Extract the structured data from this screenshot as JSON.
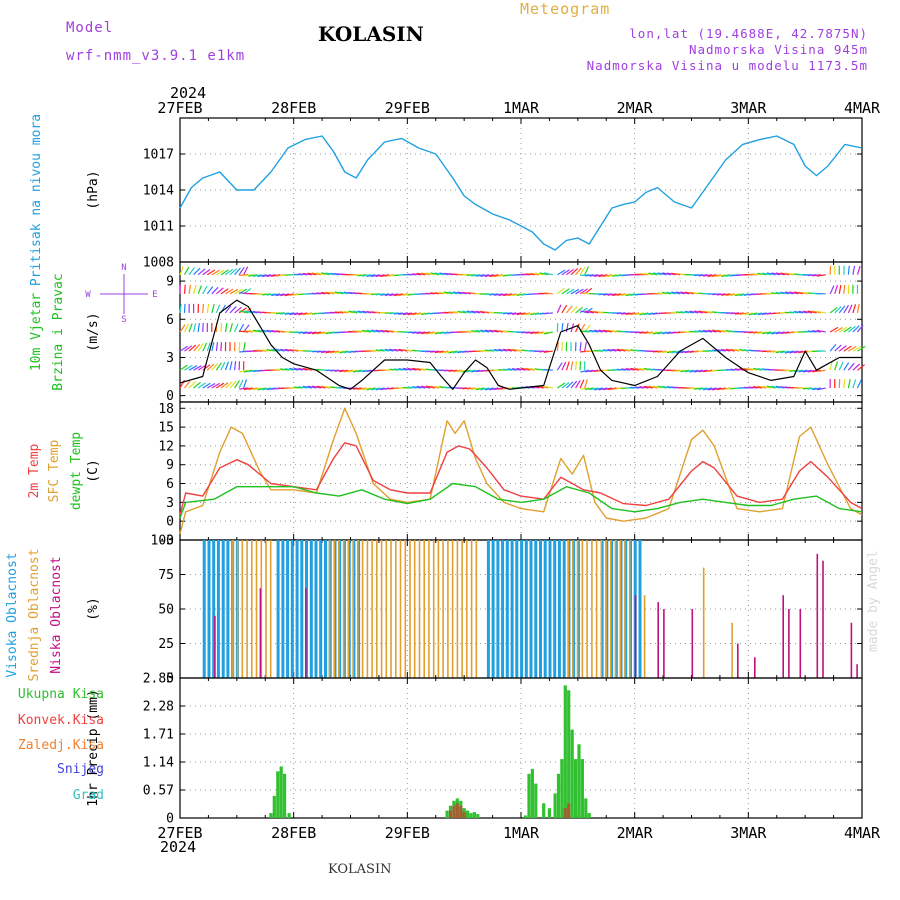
{
  "header": {
    "model_label": "Model",
    "model_name": "wrf-nmm_v3.9.1 e1km",
    "title": "KOLASIN",
    "subtitle": "Meteogram",
    "lonlat": "lon,lat (19.4688E, 42.7875N)",
    "altitude": "Nadmorska Visina 945m",
    "model_altitude": "Nadmorska Visina u modelu 1173.5m",
    "year": "2024",
    "footer": "KOLASIN",
    "credit": "made by Angel"
  },
  "colors": {
    "pressure": "#20a0e0",
    "temp2m": "#f04040",
    "sfc_temp": "#e0a030",
    "dewpoint": "#20c020",
    "high_cloud": "#20a0e0",
    "mid_cloud": "#e0a030",
    "low_cloud": "#c01080",
    "total_rain": "#30c030",
    "conv_rain": "#f04040",
    "frozen_rain": "#f08030",
    "snow": "#4040e0",
    "hail": "#30c0c0",
    "wind_speed": "#000000",
    "gust": "#f04040"
  },
  "chart_data": [
    {
      "id": "pressure",
      "type": "line",
      "ylabel": "(hPa)",
      "side_labels": [
        "Pritisak na nivou mora"
      ],
      "ylim": [
        1008,
        1020
      ],
      "yticks": [
        "1008",
        "1011",
        "1014",
        "1017"
      ],
      "xlim_days": [
        0,
        6
      ],
      "x_tick_labels": [
        "27FEB",
        "28FEB",
        "29FEB",
        "1MAR",
        "2MAR",
        "3MAR",
        "4MAR"
      ],
      "grid": true,
      "series": [
        {
          "x": [
            0,
            0.1,
            0.2,
            0.35,
            0.5,
            0.65,
            0.8,
            0.95,
            1.1,
            1.25,
            1.35,
            1.45,
            1.55,
            1.65,
            1.8,
            1.95,
            2.1,
            2.25,
            2.4,
            2.5,
            2.6,
            2.75,
            2.9,
            3.0,
            3.1,
            3.2,
            3.3,
            3.4,
            3.5,
            3.6,
            3.7,
            3.8,
            3.9,
            4.0,
            4.1,
            4.2,
            4.35,
            4.5,
            4.65,
            4.8,
            4.95,
            5.1,
            5.25,
            5.4,
            5.5,
            5.6,
            5.7,
            5.85,
            6.0
          ],
          "values": [
            1012.5,
            1014.2,
            1015.0,
            1015.5,
            1014.0,
            1014.0,
            1015.5,
            1017.5,
            1018.2,
            1018.5,
            1017.2,
            1015.5,
            1015.0,
            1016.5,
            1018.0,
            1018.3,
            1017.5,
            1017.0,
            1015.0,
            1013.5,
            1012.8,
            1012.0,
            1011.5,
            1011.0,
            1010.5,
            1009.5,
            1009.0,
            1009.8,
            1010.0,
            1009.5,
            1011.0,
            1012.5,
            1012.8,
            1013.0,
            1013.8,
            1014.2,
            1013.0,
            1012.5,
            1014.5,
            1016.5,
            1017.8,
            1018.2,
            1018.5,
            1017.8,
            1016.0,
            1015.2,
            1016.0,
            1017.8,
            1017.5
          ]
        }
      ]
    },
    {
      "id": "wind",
      "type": "line",
      "ylabel": "(m/s)",
      "side_labels": [
        "10m Vjetar",
        "Brzina i Pravac"
      ],
      "compass_labels": [
        "W",
        "E",
        "N",
        "S"
      ],
      "ylim": [
        -0.5,
        10.5
      ],
      "yticks": [
        "0",
        "3",
        "6",
        "9"
      ],
      "xlim_days": [
        0,
        6
      ],
      "x_tick_labels": [
        "27FEB",
        "28FEB",
        "29FEB",
        "1MAR",
        "2MAR",
        "3MAR",
        "4MAR"
      ],
      "grid": true,
      "series": [
        {
          "name": "speed",
          "x": [
            0,
            0.2,
            0.35,
            0.5,
            0.6,
            0.7,
            0.8,
            0.9,
            1.0,
            1.2,
            1.4,
            1.5,
            1.6,
            1.8,
            2.0,
            2.2,
            2.3,
            2.4,
            2.5,
            2.6,
            2.7,
            2.8,
            2.9,
            3.0,
            3.2,
            3.35,
            3.5,
            3.6,
            3.7,
            3.8,
            3.9,
            4.0,
            4.2,
            4.4,
            4.6,
            4.8,
            5.0,
            5.2,
            5.4,
            5.5,
            5.6,
            5.7,
            5.8,
            6.0
          ],
          "values": [
            1.0,
            1.5,
            6.5,
            7.5,
            7.0,
            5.5,
            4.0,
            3.0,
            2.5,
            2.0,
            0.8,
            0.5,
            1.2,
            2.8,
            2.8,
            2.6,
            1.5,
            0.5,
            1.8,
            2.8,
            2.2,
            0.8,
            0.5,
            0.6,
            0.8,
            5.0,
            5.5,
            4.0,
            2.0,
            1.2,
            1.0,
            0.8,
            1.5,
            3.5,
            4.5,
            3.0,
            1.8,
            1.2,
            1.5,
            3.5,
            2.0,
            2.5,
            3.0,
            3.0
          ]
        }
      ],
      "barbs_note": ""
    },
    {
      "id": "temperature",
      "type": "line",
      "ylabel": "(C)",
      "side_labels": [
        "2m Temp",
        "SFC Temp",
        "dewpt Temp"
      ],
      "ylim": [
        -3,
        19
      ],
      "yticks": [
        "-3",
        "0",
        "3",
        "6",
        "9",
        "12",
        "15",
        "18"
      ],
      "xlim_days": [
        0,
        6
      ],
      "x_tick_labels": [
        "27FEB",
        "28FEB",
        "29FEB",
        "1MAR",
        "2MAR",
        "3MAR",
        "4MAR"
      ],
      "grid": true,
      "series": [
        {
          "name": "2m Temp",
          "x": [
            0,
            0.05,
            0.2,
            0.35,
            0.5,
            0.6,
            0.8,
            1.0,
            1.2,
            1.35,
            1.45,
            1.55,
            1.7,
            1.85,
            2.0,
            2.2,
            2.35,
            2.45,
            2.55,
            2.7,
            2.85,
            3.0,
            3.2,
            3.35,
            3.45,
            3.55,
            3.7,
            3.9,
            4.1,
            4.3,
            4.5,
            4.6,
            4.7,
            4.9,
            5.1,
            5.3,
            5.45,
            5.55,
            5.7,
            5.9,
            6.0
          ],
          "values": [
            1.0,
            4.5,
            4.0,
            8.5,
            9.8,
            9.0,
            6.0,
            5.5,
            5.0,
            10.0,
            12.5,
            12.0,
            6.5,
            5.0,
            4.5,
            4.5,
            11.0,
            12.0,
            11.5,
            8.5,
            5.0,
            4.0,
            3.5,
            7.0,
            6.0,
            5.0,
            4.5,
            2.8,
            2.5,
            3.5,
            8.0,
            9.5,
            8.5,
            4.0,
            3.0,
            3.5,
            8.0,
            9.5,
            7.0,
            3.0,
            2.0
          ]
        },
        {
          "name": "SFC Temp",
          "x": [
            0,
            0.05,
            0.2,
            0.35,
            0.45,
            0.55,
            0.7,
            0.8,
            1.0,
            1.2,
            1.35,
            1.45,
            1.55,
            1.7,
            1.85,
            2.0,
            2.2,
            2.35,
            2.42,
            2.5,
            2.6,
            2.7,
            2.85,
            3.0,
            3.2,
            3.35,
            3.45,
            3.55,
            3.65,
            3.75,
            3.9,
            4.1,
            4.3,
            4.5,
            4.6,
            4.7,
            4.9,
            5.1,
            5.3,
            5.45,
            5.55,
            5.7,
            5.9,
            6.0
          ],
          "values": [
            -2.0,
            1.5,
            2.5,
            11.0,
            15.0,
            14.0,
            8.0,
            5.0,
            5.0,
            4.5,
            13.0,
            18.0,
            14.0,
            6.0,
            3.5,
            3.0,
            3.5,
            16.0,
            14.0,
            16.0,
            10.0,
            6.0,
            3.0,
            2.0,
            1.5,
            10.0,
            7.5,
            10.5,
            3.0,
            0.5,
            0.0,
            0.5,
            2.0,
            13.0,
            14.5,
            12.0,
            2.0,
            1.5,
            2.0,
            13.5,
            15.0,
            9.0,
            2.0,
            1.0
          ]
        },
        {
          "name": "dewpt Temp",
          "x": [
            0,
            0.05,
            0.3,
            0.5,
            0.7,
            1.0,
            1.2,
            1.4,
            1.6,
            1.8,
            2.0,
            2.2,
            2.4,
            2.6,
            2.8,
            3.0,
            3.2,
            3.4,
            3.6,
            3.8,
            4.0,
            4.2,
            4.4,
            4.6,
            4.8,
            5.0,
            5.2,
            5.4,
            5.6,
            5.8,
            6.0
          ],
          "values": [
            0.5,
            3.0,
            3.5,
            5.5,
            5.5,
            5.5,
            4.5,
            4.0,
            5.0,
            3.5,
            2.8,
            3.5,
            6.0,
            5.5,
            3.5,
            3.0,
            3.5,
            5.5,
            4.5,
            2.0,
            1.5,
            2.0,
            3.0,
            3.5,
            3.0,
            2.5,
            2.5,
            3.5,
            4.0,
            2.0,
            1.5
          ]
        }
      ]
    },
    {
      "id": "cloud",
      "type": "bar",
      "ylabel": "(%)",
      "side_labels": [
        "Visoka Oblacnost",
        "Srednja Oblacnost",
        "Niska Oblacnost"
      ],
      "ylim": [
        0,
        100
      ],
      "yticks": [
        "0",
        "25",
        "50",
        "75",
        "100"
      ],
      "xlim_days": [
        0,
        6
      ],
      "x_tick_labels": [
        "27FEB",
        "28FEB",
        "29FEB",
        "1MAR",
        "2MAR",
        "3MAR",
        "4MAR"
      ],
      "grid": true,
      "series": [
        {
          "name": "Visoka Oblacnost",
          "segments": [
            [
              0.2,
              0.5,
              100
            ],
            [
              0.85,
              1.6,
              100
            ],
            [
              2.7,
              3.5,
              100
            ],
            [
              3.7,
              4.05,
              100
            ]
          ]
        },
        {
          "name": "Srednja Oblacnost",
          "segments": [
            [
              0.45,
              0.8,
              100
            ],
            [
              1.3,
              2.6,
              100
            ],
            [
              3.4,
              3.95,
              100
            ]
          ],
          "points": [
            [
              4.08,
              60
            ],
            [
              4.6,
              80
            ],
            [
              4.85,
              40
            ]
          ]
        },
        {
          "name": "Niska Oblacnost",
          "points": [
            [
              0.3,
              45
            ],
            [
              0.7,
              65
            ],
            [
              1.1,
              65
            ],
            [
              4.0,
              60
            ],
            [
              4.2,
              55
            ],
            [
              4.25,
              50
            ],
            [
              4.5,
              50
            ],
            [
              4.9,
              25
            ],
            [
              5.05,
              15
            ],
            [
              5.3,
              60
            ],
            [
              5.35,
              50
            ],
            [
              5.45,
              50
            ],
            [
              5.6,
              90
            ],
            [
              5.65,
              85
            ],
            [
              5.9,
              40
            ],
            [
              5.95,
              10
            ]
          ]
        }
      ]
    },
    {
      "id": "precip",
      "type": "bar",
      "ylabel": "1hr Precip (mm)",
      "side_labels": [
        "Ukupna Kisa",
        "Konvek.Kisa",
        "Zaledj.Kisa",
        "Snijeg",
        "Grad"
      ],
      "ylim": [
        0,
        2.85
      ],
      "yticks": [
        "0",
        "0.57",
        "1.14",
        "1.71",
        "2.28",
        "2.85"
      ],
      "xlim_days": [
        0,
        6
      ],
      "x_tick_labels": [
        "27FEB",
        "28FEB",
        "29FEB",
        "1MAR",
        "2MAR",
        "3MAR",
        "4MAR"
      ],
      "grid": true,
      "series": [
        {
          "name": "Ukupna Kisa",
          "x": [
            0.8,
            0.83,
            0.86,
            0.89,
            0.92,
            0.96,
            2.35,
            2.38,
            2.41,
            2.44,
            2.47,
            2.5,
            2.53,
            2.56,
            2.59,
            2.62,
            3.04,
            3.07,
            3.1,
            3.13,
            3.2,
            3.25,
            3.3,
            3.33,
            3.36,
            3.39,
            3.42,
            3.45,
            3.48,
            3.51,
            3.54,
            3.57,
            3.6
          ],
          "values": [
            0.1,
            0.45,
            0.95,
            1.05,
            0.9,
            0.1,
            0.15,
            0.25,
            0.35,
            0.4,
            0.35,
            0.2,
            0.15,
            0.1,
            0.12,
            0.08,
            0.05,
            0.9,
            1.0,
            0.7,
            0.3,
            0.2,
            0.5,
            0.9,
            1.2,
            2.7,
            2.6,
            1.8,
            1.2,
            1.5,
            1.2,
            0.4,
            0.1
          ]
        },
        {
          "name": "Konvek.Kisa",
          "x": [
            2.38,
            2.41,
            2.44,
            2.47,
            2.5,
            3.39,
            3.42
          ],
          "values": [
            0.15,
            0.25,
            0.3,
            0.25,
            0.12,
            0.2,
            0.3
          ]
        }
      ]
    }
  ]
}
